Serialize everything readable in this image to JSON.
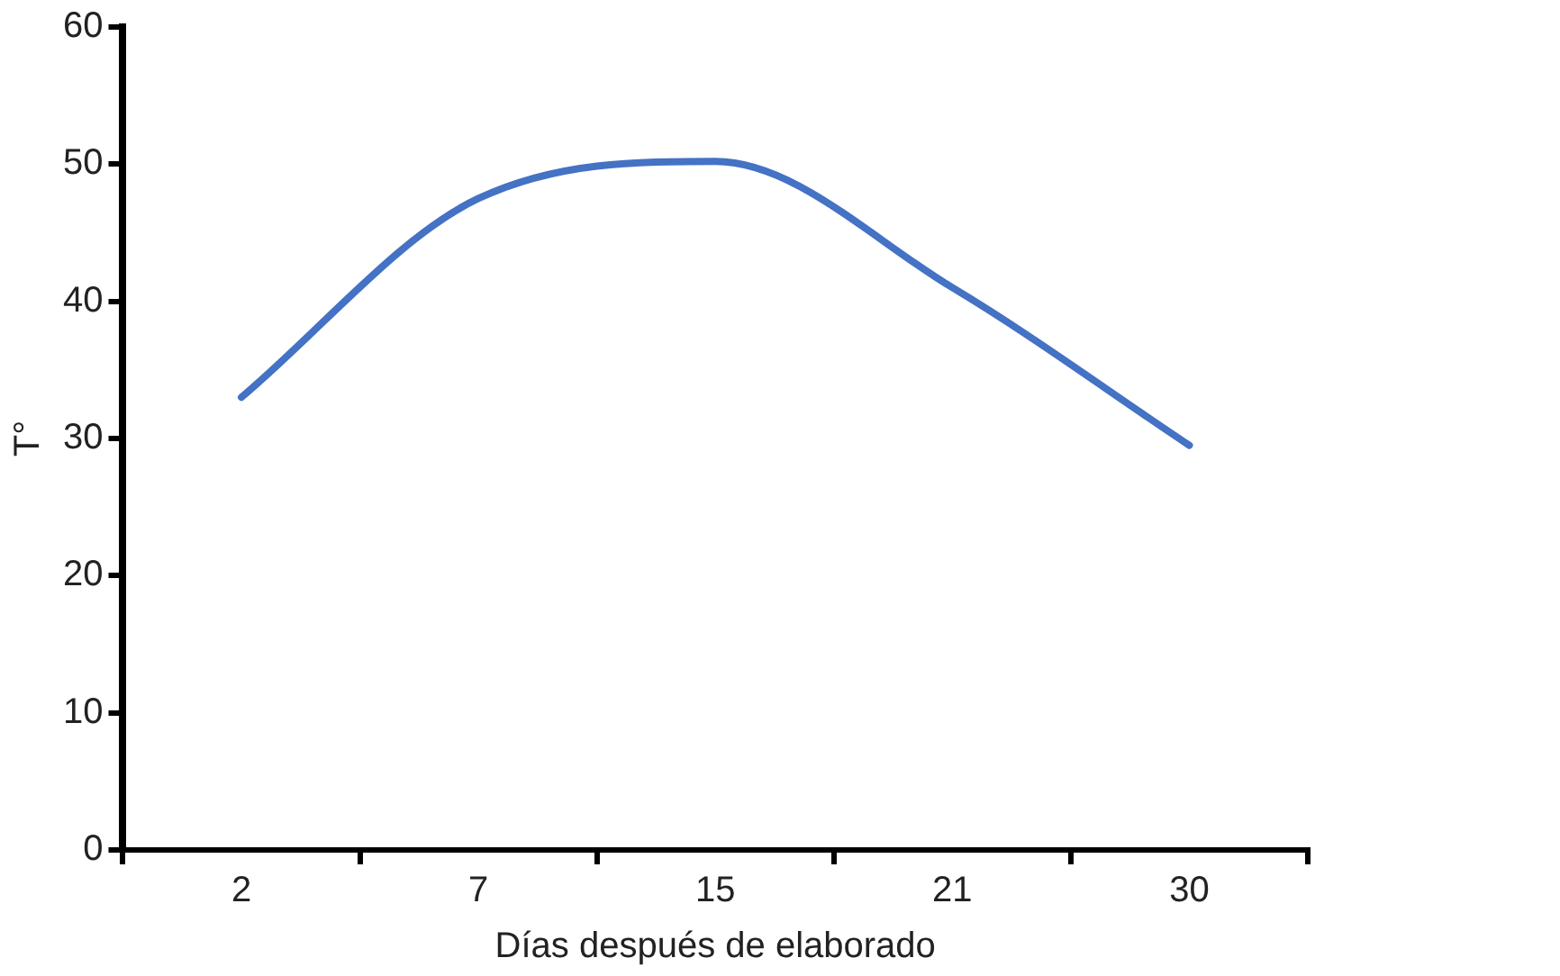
{
  "chart_data": {
    "type": "line",
    "xlabel": "Días después de elaborado",
    "ylabel": "T°",
    "categories": [
      "2",
      "7",
      "15",
      "21",
      "30"
    ],
    "series": [
      {
        "color": "#4472c4",
        "values": [
          33,
          47.5,
          50.2,
          41,
          29.5
        ]
      }
    ],
    "ylim": [
      0,
      60
    ],
    "yticks": [
      0,
      10,
      20,
      30,
      40,
      50,
      60
    ],
    "grid": false,
    "legend": false,
    "marker": "none",
    "line_style": "solid"
  }
}
